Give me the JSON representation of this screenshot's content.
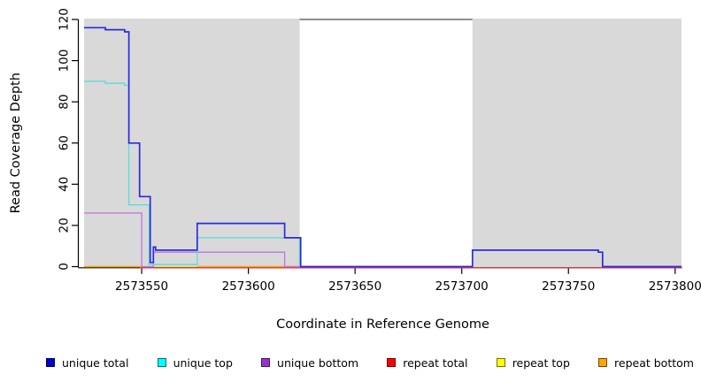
{
  "figure": {
    "background": "#ffffff"
  },
  "chart_data": {
    "type": "line",
    "subtype": "step-coverage-plot",
    "title": "",
    "xlabel": "Coordinate in Reference Genome",
    "ylabel": "Read Coverage Depth",
    "xlim": [
      2573523,
      2573803
    ],
    "ylim": [
      0,
      120
    ],
    "x_ticks": [
      2573550,
      2573600,
      2573650,
      2573700,
      2573750,
      2573800
    ],
    "y_ticks": [
      0,
      20,
      40,
      60,
      80,
      100,
      120
    ],
    "grid": false,
    "legend_position": "bottom",
    "background_regions": [
      {
        "name": "shaded-region-1",
        "x1": 2573523,
        "x2": 2573624,
        "color": "#d9d9d9"
      },
      {
        "name": "shaded-region-2",
        "x1": 2573705,
        "x2": 2573803,
        "color": "#d9d9d9"
      }
    ],
    "annotations": [
      {
        "name": "gap-top-line",
        "type": "hline",
        "y": 120,
        "x1": 2573624,
        "x2": 2573705,
        "color": "#8f8f8f"
      }
    ],
    "series": [
      {
        "name": "unique total",
        "color": "#2b2bdf",
        "legend_color": "#0000CD",
        "width": 1.7,
        "draw_order": 6,
        "segments": [
          [
            [
              2573523,
              116
            ],
            [
              2573533,
              116
            ],
            [
              2573533,
              115
            ],
            [
              2573542,
              115
            ],
            [
              2573542,
              114
            ],
            [
              2573544,
              114
            ],
            [
              2573544,
              60
            ],
            [
              2573549,
              60
            ],
            [
              2573549,
              34
            ],
            [
              2573554,
              34
            ],
            [
              2573554,
              2
            ],
            [
              2573555.5,
              2
            ],
            [
              2573555.5,
              9.5
            ],
            [
              2573556.5,
              9.5
            ],
            [
              2573556.5,
              8
            ],
            [
              2573576,
              8
            ],
            [
              2573576,
              21
            ],
            [
              2573617,
              21
            ],
            [
              2573617,
              14
            ],
            [
              2573624.5,
              14
            ],
            [
              2573624.5,
              0
            ],
            [
              2573705,
              0
            ],
            [
              2573705,
              8
            ],
            [
              2573764,
              8
            ],
            [
              2573764,
              7
            ],
            [
              2573766,
              7
            ],
            [
              2573766,
              0
            ],
            [
              2573803,
              0
            ]
          ]
        ]
      },
      {
        "name": "unique top",
        "color": "#58dcdc",
        "legend_color": "#00FFFF",
        "width": 1.3,
        "draw_order": 5,
        "segments": [
          [
            [
              2573523,
              90
            ],
            [
              2573533,
              90
            ],
            [
              2573533,
              89
            ],
            [
              2573542,
              89
            ],
            [
              2573542,
              88
            ],
            [
              2573544,
              88
            ],
            [
              2573544,
              30
            ],
            [
              2573553.5,
              30
            ],
            [
              2573553.5,
              1
            ],
            [
              2573576,
              1
            ],
            [
              2573576,
              14
            ],
            [
              2573624,
              14
            ],
            [
              2573624,
              0
            ]
          ]
        ]
      },
      {
        "name": "unique bottom",
        "color": "#bb77dd",
        "legend_color": "#9932CC",
        "width": 1.3,
        "draw_order": 4,
        "segments": [
          [
            [
              2573523,
              26
            ],
            [
              2573550,
              26
            ],
            [
              2573550,
              0
            ],
            [
              2573555.5,
              0
            ],
            [
              2573555.5,
              7
            ],
            [
              2573617,
              7
            ],
            [
              2573617,
              0
            ],
            [
              2573705,
              0
            ]
          ]
        ]
      },
      {
        "name": "repeat total",
        "color": "#e02843",
        "legend_color": "#FF0000",
        "width": 1.1,
        "draw_order": 3,
        "segments": [
          [
            [
              2573549,
              0
            ],
            [
              2573803,
              0
            ]
          ]
        ]
      },
      {
        "name": "repeat top",
        "color": "#f0f000",
        "legend_color": "#FFFF00",
        "width": 1.1,
        "draw_order": 1,
        "segments": [
          [
            [
              2573523,
              0
            ],
            [
              2573624,
              0
            ]
          ]
        ]
      },
      {
        "name": "repeat bottom",
        "color": "#FFA500",
        "legend_color": "#FFA500",
        "width": 1.5,
        "draw_order": 2,
        "segments": [
          [
            [
              2573523,
              0
            ],
            [
              2573550,
              0
            ]
          ],
          [
            [
              2573576,
              0
            ],
            [
              2573624,
              0
            ]
          ]
        ]
      }
    ]
  }
}
